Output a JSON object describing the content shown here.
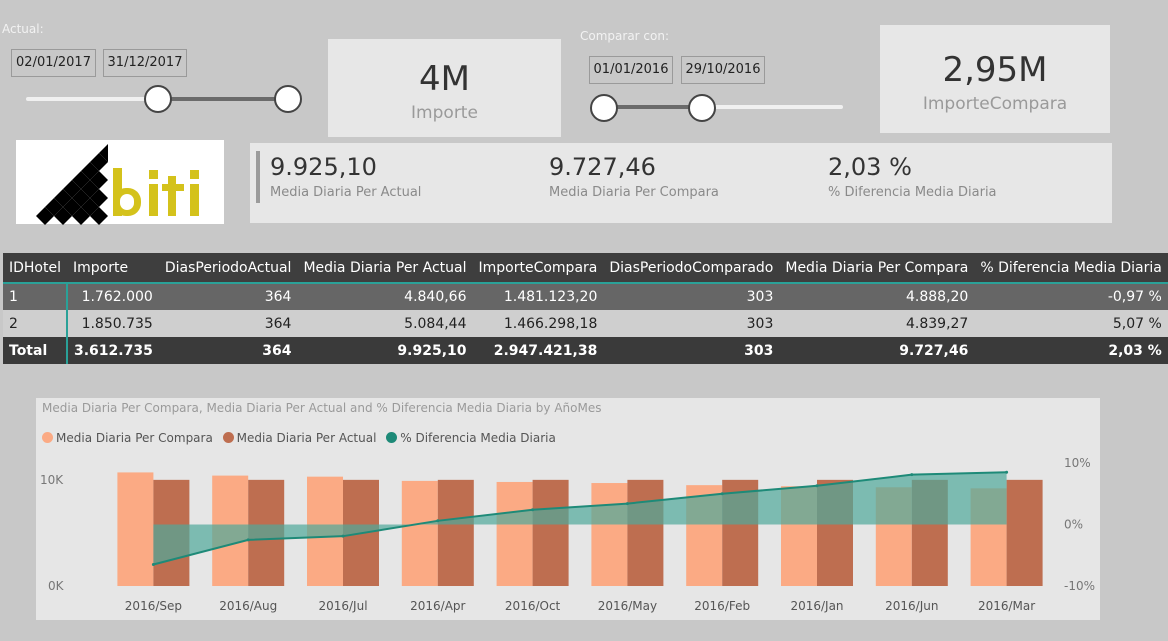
{
  "slicer_actual": {
    "title": "Actual:",
    "start": "02/01/2017",
    "end": "31/12/2017"
  },
  "slicer_compare": {
    "title": "Comparar con:",
    "start": "01/01/2016",
    "end": "29/10/2016"
  },
  "kpi_importe": {
    "value": "4M",
    "label": "Importe"
  },
  "kpi_compara": {
    "value": "2,95M",
    "label": "ImporteCompara"
  },
  "metrics": [
    {
      "value": "9.925,10",
      "label": "Media Diaria Per Actual"
    },
    {
      "value": "9.727,46",
      "label": "Media Diaria Per Compara"
    },
    {
      "value": "2,03 %",
      "label": "% Diferencia Media Diaria"
    }
  ],
  "table": {
    "headers": [
      "IDHotel",
      "Importe",
      "DiasPeriodoActual",
      "Media Diaria Per Actual",
      "ImporteCompara",
      "DiasPeriodoComparado",
      "Media Diaria Per Compara",
      "% Diferencia Media Diaria"
    ],
    "rows": [
      [
        "1",
        "1.762.000",
        "364",
        "4.840,66",
        "1.481.123,20",
        "303",
        "4.888,20",
        "-0,97 %"
      ],
      [
        "2",
        "1.850.735",
        "364",
        "5.084,44",
        "1.466.298,18",
        "303",
        "4.839,27",
        "5,07 %"
      ]
    ],
    "total": [
      "Total",
      "3.612.735",
      "364",
      "9.925,10",
      "2.947.421,38",
      "303",
      "9.727,46",
      "2,03 %"
    ]
  },
  "colors": {
    "compara": "#fbaa84",
    "actual": "#be6e50",
    "diferencia": "#1e8a78",
    "area": "#4fa89a"
  },
  "chart_data": {
    "type": "bar",
    "title": "Media Diaria Per Compara, Media Diaria Per Actual and % Diferencia Media Diaria by AñoMes",
    "legend": [
      "Media Diaria Per Compara",
      "Media Diaria Per Actual",
      "% Diferencia Media Diaria"
    ],
    "legend_position": "top-left",
    "categories": [
      "2016/Sep",
      "2016/Aug",
      "2016/Jul",
      "2016/Apr",
      "2016/Oct",
      "2016/May",
      "2016/Feb",
      "2016/Jan",
      "2016/Jun",
      "2016/Mar"
    ],
    "series": [
      {
        "name": "Media Diaria Per Compara",
        "axis": "left",
        "values": [
          10700,
          10400,
          10300,
          9900,
          9800,
          9700,
          9500,
          9400,
          9300,
          9200
        ]
      },
      {
        "name": "Media Diaria Per Actual",
        "axis": "left",
        "values": [
          10000,
          10000,
          10000,
          10000,
          10000,
          10000,
          10000,
          10000,
          10000,
          10000
        ]
      },
      {
        "name": "% Diferencia Media Diaria",
        "axis": "right",
        "type": "line",
        "values": [
          -6.5,
          -2.5,
          -1.9,
          0.6,
          2.4,
          3.4,
          5.0,
          6.3,
          8.1,
          8.5
        ]
      }
    ],
    "y_left": {
      "ticks": [
        "0K",
        "10K"
      ],
      "range": [
        0,
        13000
      ]
    },
    "y_right": {
      "ticks": [
        "10%",
        "0%",
        "-10%"
      ],
      "range": [
        -10,
        10
      ]
    }
  }
}
